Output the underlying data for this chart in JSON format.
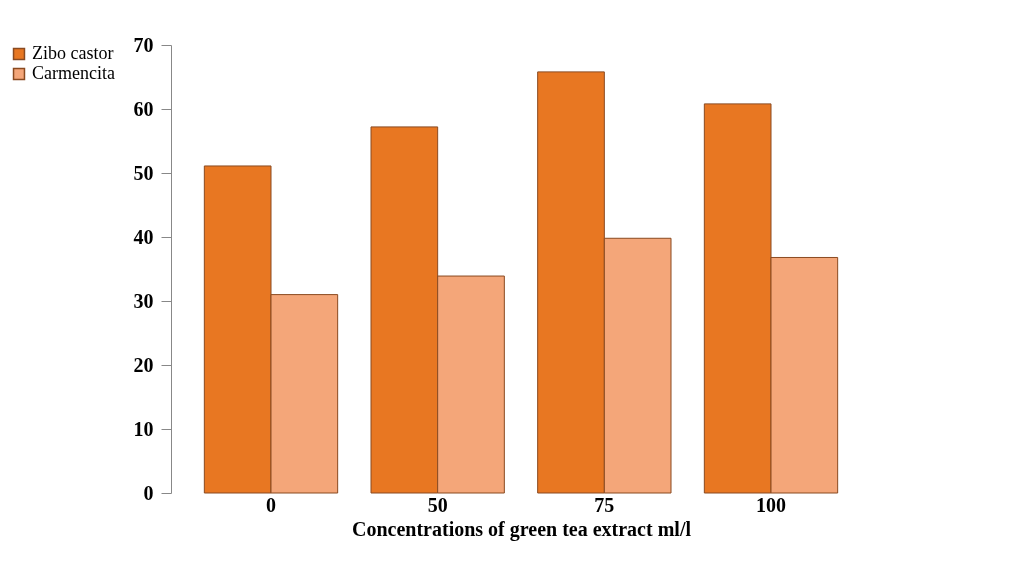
{
  "chart_data": {
    "type": "bar",
    "xlabel": "Concentrations of green tea extract ml/l",
    "categories": [
      "0",
      "50",
      "75",
      "100"
    ],
    "series": [
      {
        "name": "Zibo castor",
        "color": "#e87722",
        "values": [
          51.1,
          57.2,
          65.8,
          60.8
        ]
      },
      {
        "name": "Carmencita",
        "color": "#f4a679",
        "values": [
          31.0,
          33.9,
          39.8,
          36.8
        ]
      }
    ],
    "ylim": [
      0,
      70
    ],
    "yticks": [
      0,
      10,
      20,
      30,
      40,
      50,
      60,
      70
    ],
    "grid": false,
    "legend": "left"
  }
}
